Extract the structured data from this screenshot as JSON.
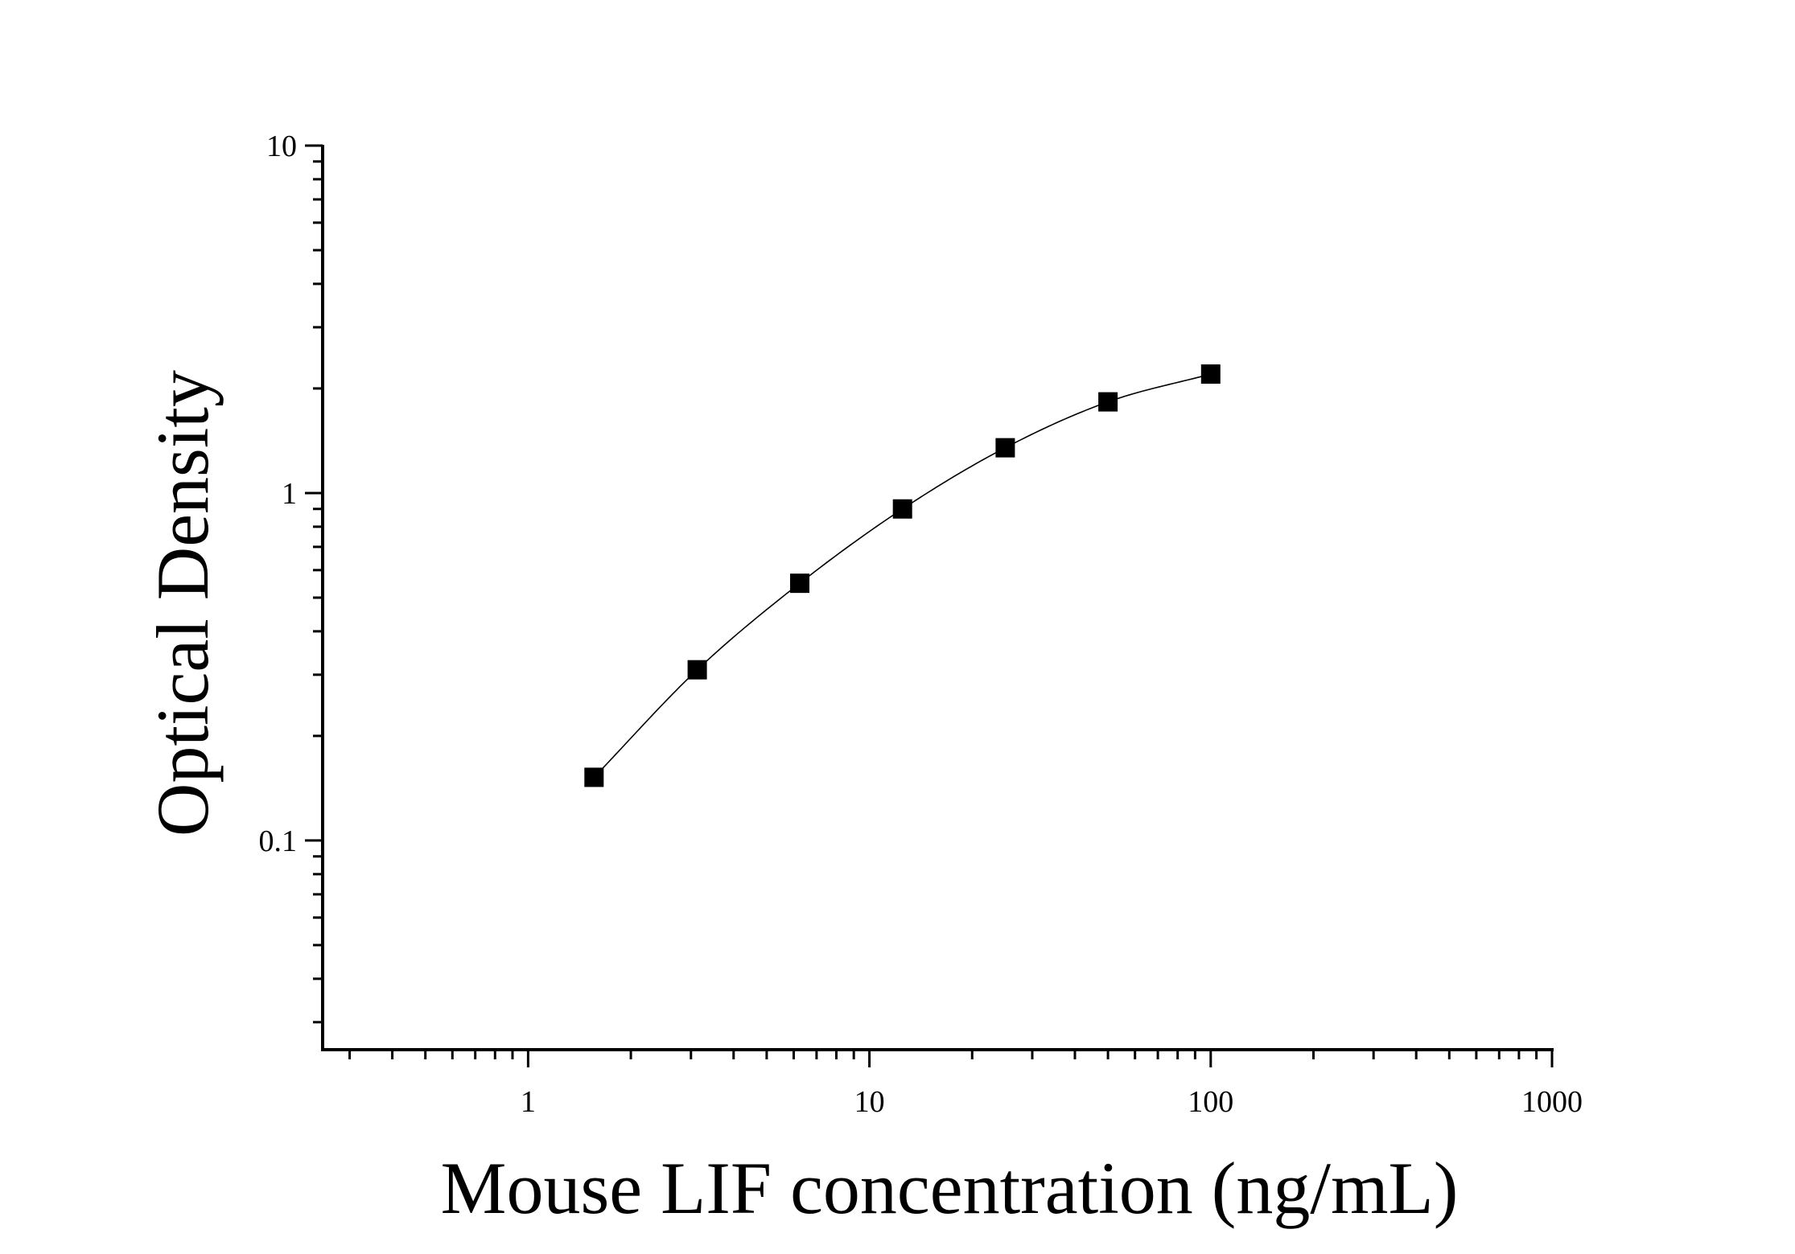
{
  "chart_data": {
    "type": "scatter",
    "xlabel": "Mouse LIF concentration (ng/mL)",
    "ylabel": "Optical Density",
    "x_scale": "log",
    "y_scale": "log",
    "xlim": [
      0.25,
      1000
    ],
    "ylim": [
      0.025,
      10
    ],
    "x_tick_labels": [
      "1",
      "10",
      "100",
      "1000"
    ],
    "x_tick_values": [
      1,
      10,
      100,
      1000
    ],
    "y_tick_labels": [
      "0.1",
      "1",
      "10"
    ],
    "y_tick_values": [
      0.1,
      1,
      10
    ],
    "grid": false,
    "legend": "none",
    "series": [
      {
        "marker": "square",
        "color": "#000000",
        "fit_line": true,
        "x": [
          1.56,
          3.13,
          6.25,
          12.5,
          25,
          50,
          100
        ],
        "y": [
          0.152,
          0.31,
          0.55,
          0.9,
          1.35,
          1.83,
          2.2
        ]
      }
    ]
  }
}
